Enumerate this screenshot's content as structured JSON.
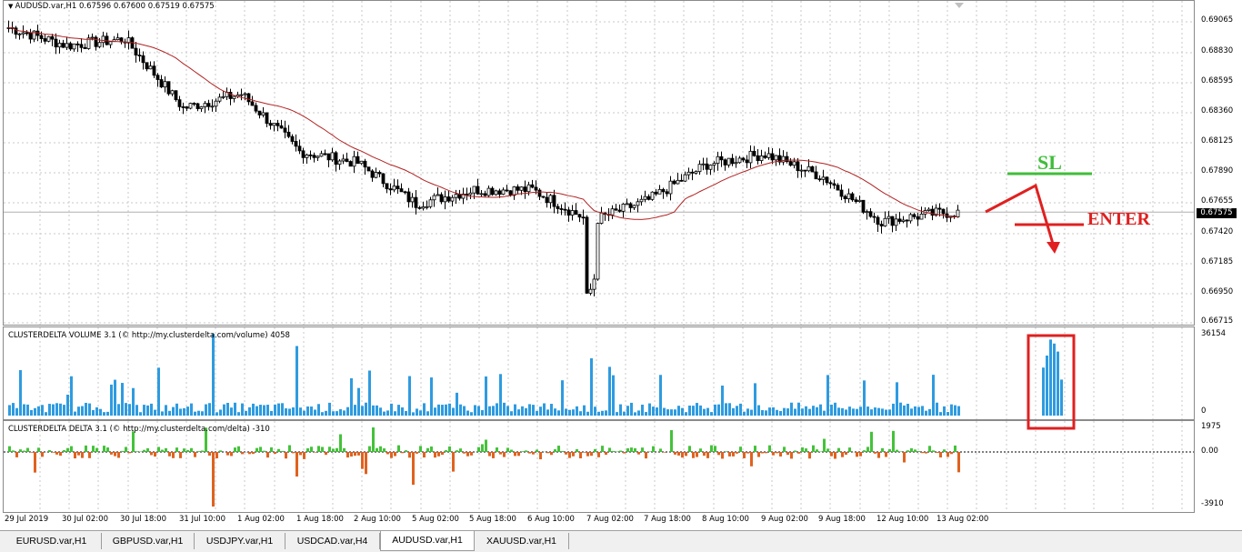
{
  "main": {
    "title": "AUDUSD.var,H1  0.67596 0.67600 0.67519 0.67575",
    "current_price": "0.67575",
    "price_ticks": [
      "0.69065",
      "0.68830",
      "0.68595",
      "0.68360",
      "0.68125",
      "0.67890",
      "0.67655",
      "0.67420",
      "0.67185",
      "0.66950",
      "0.66715"
    ],
    "ylim": [
      0.66715,
      0.69065
    ]
  },
  "volume": {
    "title": "CLUSTERDELTA VOLUME 3.1 (© http://my.clusterdelta.com/volume) 4058",
    "ticks": [
      "36154",
      "0"
    ]
  },
  "delta": {
    "title": "CLUSTERDELTA DELTA 3.1 (© http://my.clusterdelta.com/delta) -310",
    "ticks": [
      "1975",
      "0.00",
      "-3910"
    ]
  },
  "time_labels": [
    "29 Jul 2019",
    "30 Jul 02:00",
    "30 Jul 18:00",
    "31 Jul 10:00",
    "1 Aug 02:00",
    "1 Aug 18:00",
    "2 Aug 10:00",
    "5 Aug 02:00",
    "5 Aug 18:00",
    "6 Aug 10:00",
    "7 Aug 02:00",
    "7 Aug 18:00",
    "8 Aug 10:00",
    "9 Aug 02:00",
    "9 Aug 18:00",
    "12 Aug 10:00",
    "13 Aug 02:00"
  ],
  "annotations": {
    "sl": "SL",
    "enter": "ENTER"
  },
  "tabs": [
    "EURUSD.var,H1",
    "GBPUSD.var,H1",
    "USDJPY.var,H1",
    "USDCAD.var,H4",
    "AUDUSD.var,H1",
    "XAUUSD.var,H1"
  ],
  "active_tab": 4,
  "colors": {
    "up": "#2e9be0",
    "delta_pos": "#44c23a",
    "delta_neg": "#e0621e",
    "ma": "#b22222",
    "candle": "#000000",
    "annotation_red": "#e02020",
    "annotation_green": "#3fbd3a"
  },
  "chart_data": [
    {
      "type": "candlestick",
      "title": "AUDUSD.var,H1",
      "ylim": [
        0.66715,
        0.69065
      ],
      "moving_average": true,
      "x": [
        "29 Jul 2019",
        "30 Jul 02:00",
        "30 Jul 18:00",
        "31 Jul 10:00",
        "1 Aug 02:00",
        "1 Aug 18:00",
        "2 Aug 10:00",
        "5 Aug 02:00",
        "5 Aug 18:00",
        "6 Aug 10:00",
        "7 Aug 02:00",
        "7 Aug 18:00",
        "8 Aug 10:00",
        "9 Aug 02:00",
        "9 Aug 18:00",
        "12 Aug 10:00",
        "13 Aug 02:00"
      ],
      "close": [
        0.6902,
        0.6888,
        0.6893,
        0.6839,
        0.685,
        0.6805,
        0.6796,
        0.6764,
        0.6775,
        0.6775,
        0.675,
        0.6767,
        0.6795,
        0.6803,
        0.6785,
        0.675,
        0.6757
      ],
      "last": {
        "open": 0.67596,
        "high": 0.676,
        "low": 0.67519,
        "close": 0.67575
      }
    },
    {
      "type": "bar",
      "title": "CLUSTERDELTA VOLUME 3.1",
      "ylim": [
        0,
        36154
      ],
      "last_value": 4058,
      "highlighted_peak": 36154
    },
    {
      "type": "bar",
      "title": "CLUSTERDELTA DELTA 3.1",
      "ylim": [
        -3910,
        1975
      ],
      "last_value": -310
    }
  ]
}
